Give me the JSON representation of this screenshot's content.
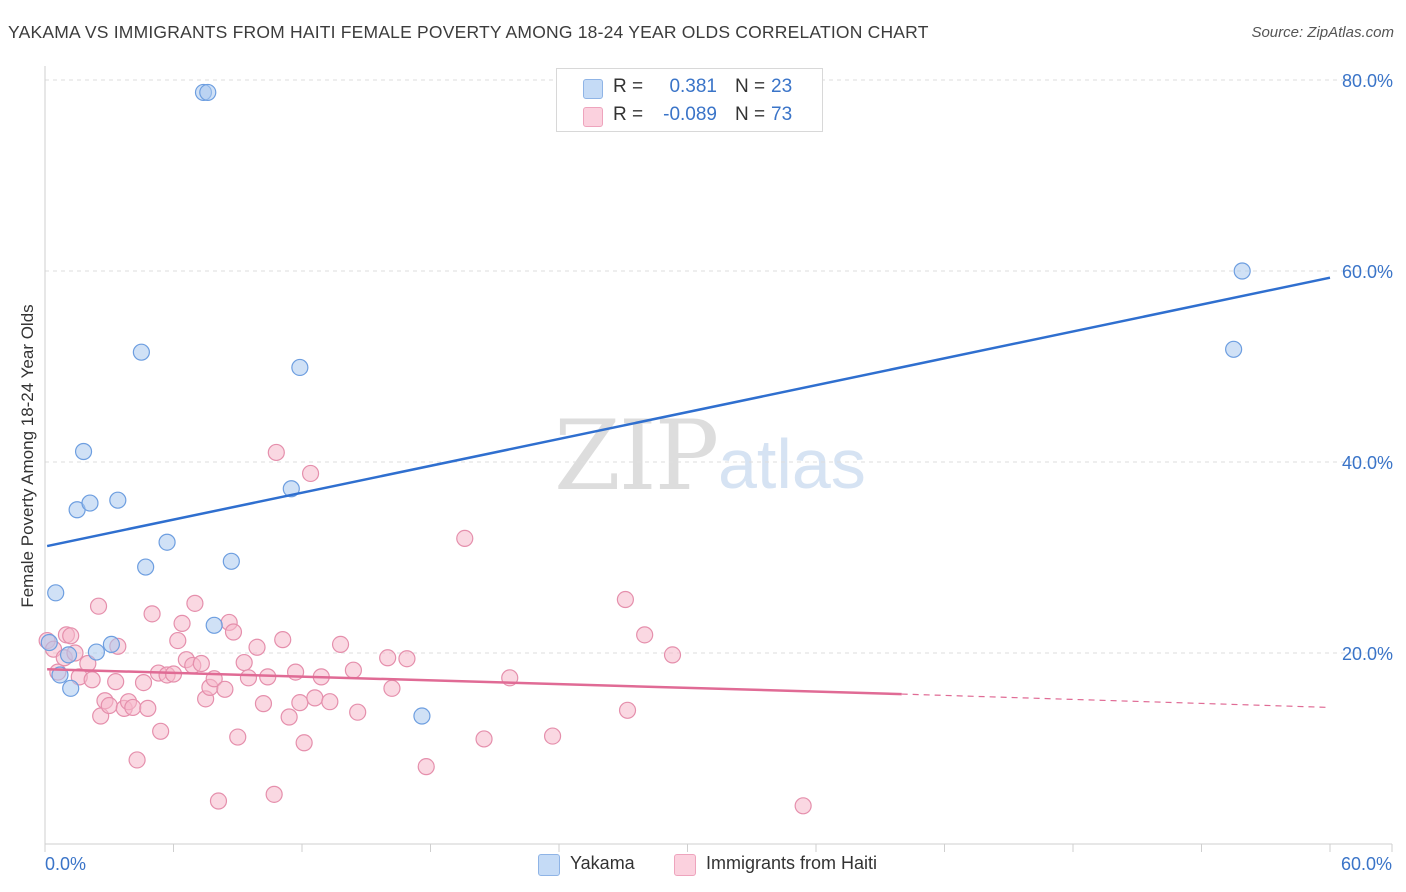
{
  "header": {
    "title": "YAKAMA VS IMMIGRANTS FROM HAITI FEMALE POVERTY AMONG 18-24 YEAR OLDS CORRELATION CHART",
    "source": "Source: ZipAtlas.com"
  },
  "watermark": {
    "zip": "ZIP",
    "atlas": "atlas"
  },
  "legend": {
    "rows": [
      {
        "r_label": "R =",
        "r_value": "0.381",
        "n_label": "N =",
        "n_value": "23",
        "color": "#a9c8ef"
      },
      {
        "r_label": "R =",
        "r_value": "-0.089",
        "n_label": "N =",
        "n_value": "73",
        "color": "#f6b8cb"
      }
    ]
  },
  "bottom_legend": {
    "series1": "Yakama",
    "series2": "Immigrants from Haiti"
  },
  "chart_data": {
    "type": "scatter",
    "title": "YAKAMA VS IMMIGRANTS FROM HAITI FEMALE POVERTY AMONG 18-24 YEAR OLDS CORRELATION CHART",
    "xlabel": "",
    "ylabel": "Female Poverty Among 18-24 Year Olds",
    "xlim": [
      0,
      60
    ],
    "ylim": [
      0,
      80
    ],
    "x_tick_labels": [
      "0.0%",
      "60.0%"
    ],
    "y_tick_labels": [
      "20.0%",
      "40.0%",
      "60.0%",
      "80.0%"
    ],
    "y_ticks": [
      20,
      40,
      60,
      80
    ],
    "grid": true,
    "series": [
      {
        "name": "Yakama",
        "color": "#a9c8ef",
        "stroke": "#6d9ee0",
        "line_color": "#2f6fcf",
        "trend": {
          "x": [
            0.1,
            60
          ],
          "y": [
            31.2,
            59.3
          ],
          "dashed_from_x": null
        },
        "points": [
          [
            0.2,
            21.1
          ],
          [
            0.5,
            26.3
          ],
          [
            0.7,
            17.7
          ],
          [
            1.1,
            19.8
          ],
          [
            1.2,
            16.3
          ],
          [
            1.5,
            35.0
          ],
          [
            1.8,
            41.1
          ],
          [
            2.1,
            35.7
          ],
          [
            2.4,
            20.1
          ],
          [
            3.1,
            20.9
          ],
          [
            3.4,
            36.0
          ],
          [
            4.5,
            51.5
          ],
          [
            4.7,
            29.0
          ],
          [
            5.7,
            31.6
          ],
          [
            7.4,
            78.7
          ],
          [
            7.6,
            78.7
          ],
          [
            7.9,
            22.9
          ],
          [
            8.7,
            29.6
          ],
          [
            11.5,
            37.2
          ],
          [
            11.9,
            49.9
          ],
          [
            17.6,
            13.4
          ],
          [
            55.5,
            51.8
          ],
          [
            55.9,
            60.0
          ]
        ]
      },
      {
        "name": "Immigrants from Haiti",
        "color": "#f6b8cb",
        "stroke": "#e58fac",
        "line_color": "#e06b95",
        "trend": {
          "x": [
            0.1,
            40
          ],
          "y": [
            18.3,
            15.7
          ],
          "dashed_to_x": 60,
          "dashed_to_y": 14.3
        },
        "points": [
          [
            0.1,
            21.3
          ],
          [
            0.4,
            20.4
          ],
          [
            0.6,
            18.0
          ],
          [
            0.9,
            19.5
          ],
          [
            1.0,
            21.9
          ],
          [
            1.2,
            21.8
          ],
          [
            1.4,
            20.0
          ],
          [
            1.6,
            17.5
          ],
          [
            2.0,
            18.9
          ],
          [
            2.2,
            17.2
          ],
          [
            2.5,
            24.9
          ],
          [
            2.6,
            13.4
          ],
          [
            2.8,
            15.0
          ],
          [
            3.0,
            14.5
          ],
          [
            3.3,
            17.0
          ],
          [
            3.4,
            20.7
          ],
          [
            3.7,
            14.2
          ],
          [
            3.9,
            14.9
          ],
          [
            4.1,
            14.3
          ],
          [
            4.3,
            8.8
          ],
          [
            4.6,
            16.9
          ],
          [
            4.8,
            14.2
          ],
          [
            5.0,
            24.1
          ],
          [
            5.3,
            17.9
          ],
          [
            5.4,
            11.8
          ],
          [
            5.7,
            17.7
          ],
          [
            6.0,
            17.8
          ],
          [
            6.2,
            21.3
          ],
          [
            6.4,
            23.1
          ],
          [
            6.6,
            19.3
          ],
          [
            6.9,
            18.7
          ],
          [
            7.0,
            25.2
          ],
          [
            7.3,
            18.9
          ],
          [
            7.5,
            15.2
          ],
          [
            7.7,
            16.4
          ],
          [
            7.9,
            17.3
          ],
          [
            8.1,
            4.5
          ],
          [
            8.4,
            16.2
          ],
          [
            8.6,
            23.2
          ],
          [
            8.8,
            22.2
          ],
          [
            9.0,
            11.2
          ],
          [
            9.3,
            19.0
          ],
          [
            9.5,
            17.4
          ],
          [
            9.9,
            20.6
          ],
          [
            10.2,
            14.7
          ],
          [
            10.4,
            17.5
          ],
          [
            10.7,
            5.2
          ],
          [
            10.8,
            41.0
          ],
          [
            11.1,
            21.4
          ],
          [
            11.4,
            13.3
          ],
          [
            11.7,
            18.0
          ],
          [
            11.9,
            14.8
          ],
          [
            12.1,
            10.6
          ],
          [
            12.4,
            38.8
          ],
          [
            12.6,
            15.3
          ],
          [
            12.9,
            17.5
          ],
          [
            13.3,
            14.9
          ],
          [
            13.8,
            20.9
          ],
          [
            14.4,
            18.2
          ],
          [
            14.6,
            13.8
          ],
          [
            16.0,
            19.5
          ],
          [
            16.2,
            16.3
          ],
          [
            16.9,
            19.4
          ],
          [
            17.8,
            8.1
          ],
          [
            19.6,
            32.0
          ],
          [
            20.5,
            11.0
          ],
          [
            21.7,
            17.4
          ],
          [
            23.7,
            11.3
          ],
          [
            27.1,
            25.6
          ],
          [
            27.2,
            14.0
          ],
          [
            28.0,
            21.9
          ],
          [
            29.3,
            19.8
          ],
          [
            35.4,
            4.0
          ]
        ]
      }
    ]
  }
}
